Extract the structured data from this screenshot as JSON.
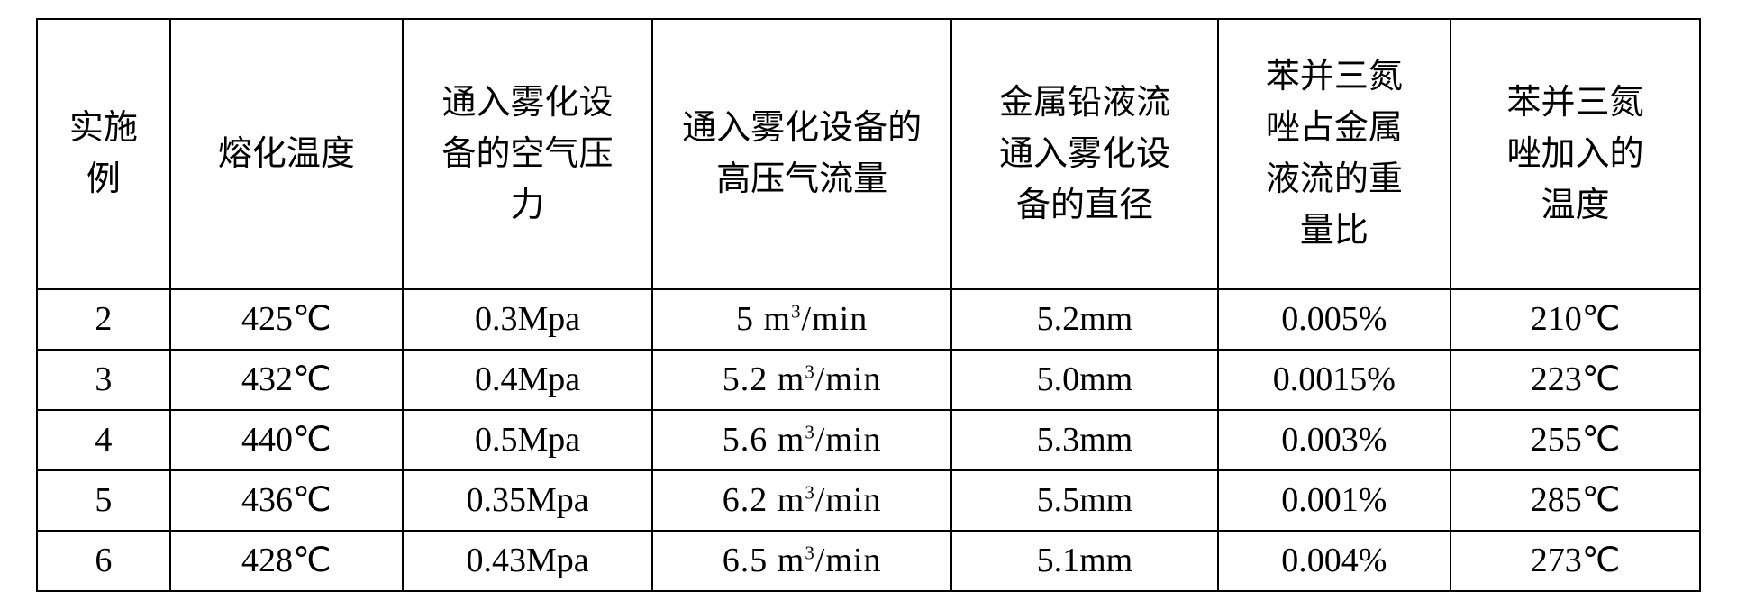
{
  "table": {
    "background_color": "#ffffff",
    "border_color": "#000000",
    "text_color": "#000000",
    "font_family": "SimSun",
    "header_fontsize": 38,
    "body_fontsize": 38,
    "column_widths_pct": [
      8,
      14,
      15,
      18,
      16,
      14,
      15
    ],
    "columns": [
      "实施例",
      "熔化温度",
      "通入雾化设备的空气压力",
      "通入雾化设备的高压气流量",
      "金属铅液流通入雾化设备的直径",
      "苯并三氮唑占金属液流的重量比",
      "苯并三氮唑加入的温度"
    ],
    "header_lines": [
      [
        "实施",
        "例"
      ],
      [
        "熔化温度"
      ],
      [
        "通入雾化设",
        "备的空气压",
        "力"
      ],
      [
        "通入雾化设备的",
        "高压气流量"
      ],
      [
        "金属铅液流",
        "通入雾化设",
        "备的直径"
      ],
      [
        "苯并三氮",
        "唑占金属",
        "液流的重",
        "量比"
      ],
      [
        "苯并三氮",
        "唑加入的",
        "温度"
      ]
    ],
    "rows": [
      {
        "id": "2",
        "melt_temp": "425℃",
        "air_pressure": "0.3Mpa",
        "gas_flow": {
          "val": "5",
          "unit_sup": "3",
          "unit_rest": "/min",
          "prefix": "m"
        },
        "diameter": "5.2mm",
        "bt_ratio": "0.005%",
        "bt_temp": "210℃"
      },
      {
        "id": "3",
        "melt_temp": "432℃",
        "air_pressure": "0.4Mpa",
        "gas_flow": {
          "val": "5.2",
          "unit_sup": "3",
          "unit_rest": "/min",
          "prefix": "m"
        },
        "diameter": "5.0mm",
        "bt_ratio": "0.0015%",
        "bt_temp": "223℃"
      },
      {
        "id": "4",
        "melt_temp": "440℃",
        "air_pressure": "0.5Mpa",
        "gas_flow": {
          "val": "5.6",
          "unit_sup": "3",
          "unit_rest": "/min",
          "prefix": "m"
        },
        "diameter": "5.3mm",
        "bt_ratio": "0.003%",
        "bt_temp": "255℃"
      },
      {
        "id": "5",
        "melt_temp": "436℃",
        "air_pressure": "0.35Mpa",
        "gas_flow": {
          "val": "6.2",
          "unit_sup": "3",
          "unit_rest": "/min",
          "prefix": "m"
        },
        "diameter": "5.5mm",
        "bt_ratio": "0.001%",
        "bt_temp": "285℃"
      },
      {
        "id": "6",
        "melt_temp": "428℃",
        "air_pressure": "0.43Mpa",
        "gas_flow": {
          "val": "6.5",
          "unit_sup": "3",
          "unit_rest": "/min",
          "prefix": "m"
        },
        "diameter": "5.1mm",
        "bt_ratio": "0.004%",
        "bt_temp": "273℃"
      }
    ]
  }
}
